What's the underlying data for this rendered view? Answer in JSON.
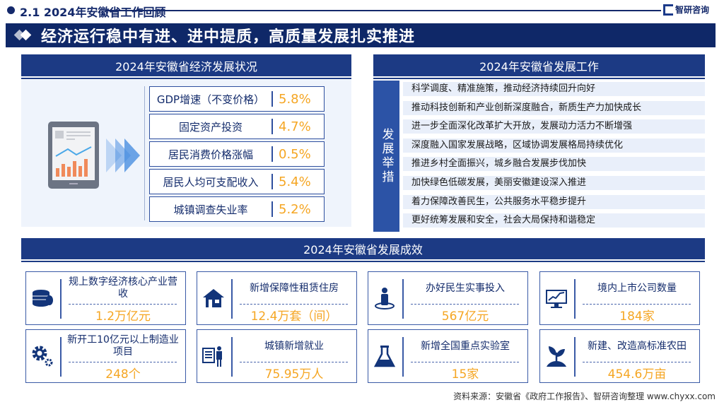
{
  "header": {
    "section_title": "2.1  2024年安徽省工作回顾",
    "logo_text": "智研咨询"
  },
  "banner": {
    "title": "经济运行稳中有进、进中提质，高质量发展扎实推进"
  },
  "economy": {
    "title": "2024年安徽省经济发展状况",
    "items": [
      {
        "label": "GDP增速（不变价格）",
        "value": "5.8%"
      },
      {
        "label": "固定资产投资",
        "value": "4.7%"
      },
      {
        "label": "居民消费价格涨幅",
        "value": "0.5%"
      },
      {
        "label": "居民人均可支配收入",
        "value": "5.4%"
      },
      {
        "label": "城镇调查失业率",
        "value": "5.2%"
      }
    ]
  },
  "work": {
    "title": "2024年安徽省发展工作",
    "side_label": "发展举措",
    "items": [
      "科学调度、精准施策，推动经济持续回升向好",
      "推动科技创新和产业创新深度融合，新质生产力加快成长",
      "进一步全面深化改革扩大开放，发展动力活力不断增强",
      "深度融入国家发展战略，区域协调发展格局持续优化",
      "推进乡村全面振兴，城乡融合发展步伐加快",
      "加快绿色低碳发展，美丽安徽建设深入推进",
      "着力保障改善民生，公共服务水平稳步提升",
      "更好统筹发展和安全，社会大局保持和谐稳定"
    ]
  },
  "results": {
    "title": "2024年安徽省发展成效",
    "cards": [
      {
        "title": "规上数字经济核心产业营收",
        "value": "1.2万亿元",
        "icon": "coins-icon"
      },
      {
        "title": "新增保障性租赁住房",
        "value": "12.4万套（间）",
        "icon": "house-icon"
      },
      {
        "title": "办好民生实事投入",
        "value": "567亿元",
        "icon": "person-icon"
      },
      {
        "title": "境内上市公司数量",
        "value": "184家",
        "icon": "monitor-chart-icon"
      },
      {
        "title": "新开工10亿元以上制造业项目",
        "value": "248个",
        "icon": "gears-icon"
      },
      {
        "title": "城镇新增就业",
        "value": "75.95万人",
        "icon": "worker-document-icon"
      },
      {
        "title": "新增全国重点实验室",
        "value": "15家",
        "icon": "flask-icon"
      },
      {
        "title": "新建、改造高标准农田",
        "value": "454.6万亩",
        "icon": "sprout-icon"
      }
    ]
  },
  "footer": {
    "source": "资料来源：安徽省《政府工作报告》、智研咨询整理  www.chyxx.com"
  },
  "colors": {
    "navy": "#0f2868",
    "accent_orange": "#f5a623",
    "panel_blue": "#2c53a6"
  }
}
